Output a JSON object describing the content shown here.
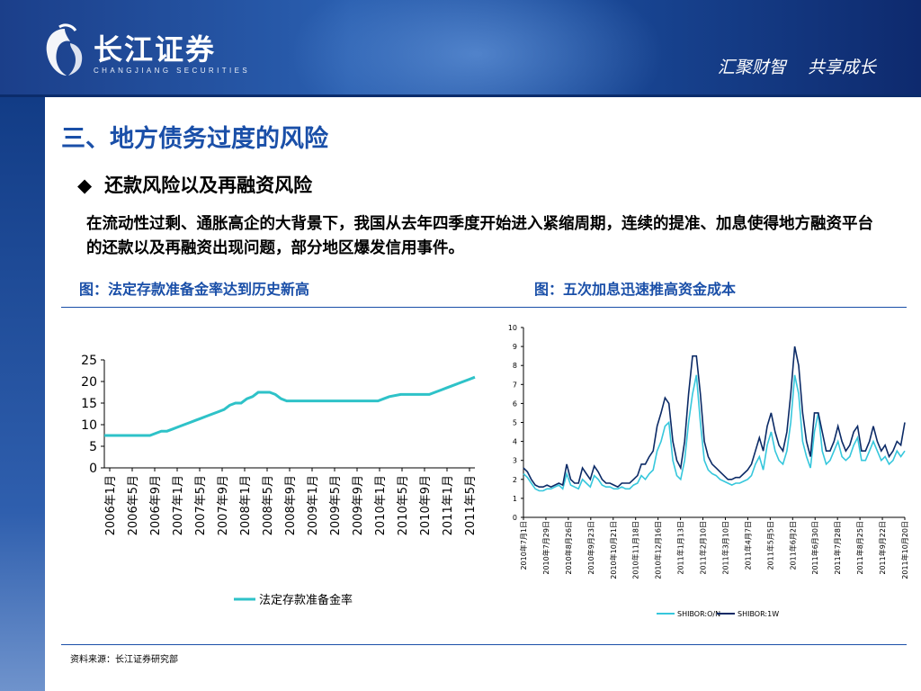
{
  "header": {
    "logo_cn": "长江证券",
    "logo_en": "CHANGJIANG SECURITIES",
    "slogan": "汇聚财智    共享成长"
  },
  "colors": {
    "brand_blue": "#1a4fa8",
    "series1": "#2ec2c8",
    "series_light": "#36c7dc",
    "series_dark": "#0b2a66"
  },
  "title": "三、地方债务过度的风险",
  "bullet": {
    "marker": "◆",
    "text": "还款风险以及再融资风险"
  },
  "paragraph": "在流动性过剩、通胀高企的大背景下，我国从去年四季度开始进入紧缩周期，连续的提准、加息使得地方融资平台的还款以及再融资出现问题，部分地区爆发信用事件。",
  "caption_left": "图：法定存款准备金率达到历史新高",
  "caption_right": "图：五次加息迅速推高资金成本",
  "source": "资料来源：长江证券研究部",
  "chart_data": [
    {
      "type": "line",
      "ylim": [
        0,
        25
      ],
      "yticks": [
        0,
        5,
        10,
        15,
        20,
        25
      ],
      "xtick_labels": [
        "2006年1月",
        "2006年5月",
        "2006年9月",
        "2007年1月",
        "2007年5月",
        "2007年9月",
        "2008年1月",
        "2008年5月",
        "2008年9月",
        "2009年1月",
        "2009年5月",
        "2009年9月",
        "2010年1月",
        "2010年5月",
        "2010年9月",
        "2011年1月",
        "2011年5月"
      ],
      "series": [
        {
          "name": "法定存款准备金率",
          "points": [
            [
              0,
              7.5
            ],
            [
              8,
              7.5
            ],
            [
              9,
              8
            ],
            [
              10,
              8.5
            ],
            [
              11,
              8.5
            ],
            [
              12,
              9
            ],
            [
              13,
              9.5
            ],
            [
              14,
              10
            ],
            [
              15,
              10.5
            ],
            [
              16,
              11
            ],
            [
              17,
              11.5
            ],
            [
              18,
              12
            ],
            [
              19,
              12.5
            ],
            [
              20,
              13
            ],
            [
              21,
              13.5
            ],
            [
              22,
              14.5
            ],
            [
              23,
              15
            ],
            [
              24,
              15
            ],
            [
              25,
              16
            ],
            [
              26,
              16.5
            ],
            [
              27,
              17.5
            ],
            [
              28,
              17.5
            ],
            [
              29,
              17.5
            ],
            [
              30,
              17
            ],
            [
              31,
              16
            ],
            [
              32,
              15.5
            ],
            [
              40,
              15.5
            ],
            [
              41,
              15.5
            ],
            [
              48,
              15.5
            ],
            [
              49,
              16
            ],
            [
              50,
              16.5
            ],
            [
              52,
              17
            ],
            [
              57,
              17
            ],
            [
              58,
              17.5
            ],
            [
              59,
              18
            ],
            [
              60,
              18.5
            ],
            [
              61,
              19
            ],
            [
              62,
              19.5
            ],
            [
              63,
              20
            ],
            [
              64,
              20.5
            ],
            [
              65,
              21
            ]
          ]
        }
      ]
    },
    {
      "type": "line",
      "ylim": [
        0,
        10
      ],
      "yticks": [
        0,
        1,
        2,
        3,
        4,
        5,
        6,
        7,
        8,
        9,
        10
      ],
      "xtick_labels": [
        "2010年7月1日",
        "2010年7月29日",
        "2010年8月26日",
        "2010年9月23日",
        "2010年10月21日",
        "2010年11月18日",
        "2010年12月16日",
        "2011年1月13日",
        "2011年2月10日",
        "2011年3月10日",
        "2011年4月7日",
        "2011年5月5日",
        "2011年6月2日",
        "2011年6月30日",
        "2011年7月28日",
        "2011年8月25日",
        "2011年9月22日",
        "2011年10月20日"
      ],
      "legend": [
        "SHIBOR:O/N",
        "SHIBOR:1W"
      ],
      "series": [
        {
          "name": "SHIBOR:O/N",
          "values": [
            2.3,
            2.1,
            1.8,
            1.5,
            1.4,
            1.4,
            1.5,
            1.5,
            1.6,
            1.7,
            1.5,
            2.3,
            1.7,
            1.6,
            1.5,
            2.0,
            1.8,
            1.6,
            2.2,
            2.0,
            1.7,
            1.6,
            1.6,
            1.5,
            1.5,
            1.6,
            1.5,
            1.5,
            1.7,
            1.8,
            2.2,
            2.0,
            2.3,
            2.5,
            3.5,
            4.0,
            4.8,
            5.0,
            3.0,
            2.2,
            2.0,
            3.0,
            5.0,
            6.5,
            7.5,
            5.0,
            3.0,
            2.5,
            2.3,
            2.2,
            2.0,
            1.9,
            1.8,
            1.7,
            1.8,
            1.8,
            1.9,
            2.0,
            2.2,
            2.8,
            3.2,
            2.5,
            3.8,
            4.5,
            3.5,
            3.0,
            2.8,
            3.5,
            5.0,
            7.5,
            6.5,
            4.0,
            3.2,
            2.6,
            4.5,
            5.5,
            3.5,
            2.8,
            3.0,
            3.5,
            4.0,
            3.2,
            3.0,
            3.2,
            3.8,
            4.2,
            3.0,
            3.0,
            3.5,
            4.0,
            3.5,
            3.0,
            3.2,
            2.8,
            3.0,
            3.5,
            3.2,
            3.5
          ],
          "x_range": [
            0,
            1
          ]
        },
        {
          "name": "SHIBOR:1W",
          "values": [
            2.6,
            2.4,
            2.0,
            1.7,
            1.6,
            1.6,
            1.7,
            1.6,
            1.7,
            1.8,
            1.7,
            2.8,
            2.0,
            1.8,
            1.8,
            2.6,
            2.3,
            2.0,
            2.7,
            2.4,
            2.0,
            1.8,
            1.8,
            1.7,
            1.6,
            1.8,
            1.8,
            1.8,
            2.0,
            2.2,
            2.8,
            2.8,
            3.2,
            3.5,
            4.8,
            5.5,
            6.3,
            6.0,
            4.0,
            3.0,
            2.6,
            4.0,
            6.5,
            8.5,
            8.5,
            6.5,
            4.0,
            3.2,
            2.8,
            2.6,
            2.4,
            2.2,
            2.0,
            2.0,
            2.1,
            2.1,
            2.3,
            2.5,
            2.8,
            3.5,
            4.2,
            3.5,
            4.8,
            5.5,
            4.5,
            3.8,
            3.5,
            4.5,
            6.5,
            9.0,
            8.0,
            5.5,
            4.0,
            3.2,
            5.5,
            5.5,
            4.5,
            3.5,
            3.5,
            4.0,
            4.8,
            4.0,
            3.5,
            3.8,
            4.5,
            4.8,
            3.5,
            3.5,
            4.0,
            4.8,
            4.0,
            3.5,
            3.8,
            3.2,
            3.5,
            4.0,
            3.8,
            5.0
          ],
          "x_range": [
            0,
            1
          ]
        }
      ]
    }
  ]
}
